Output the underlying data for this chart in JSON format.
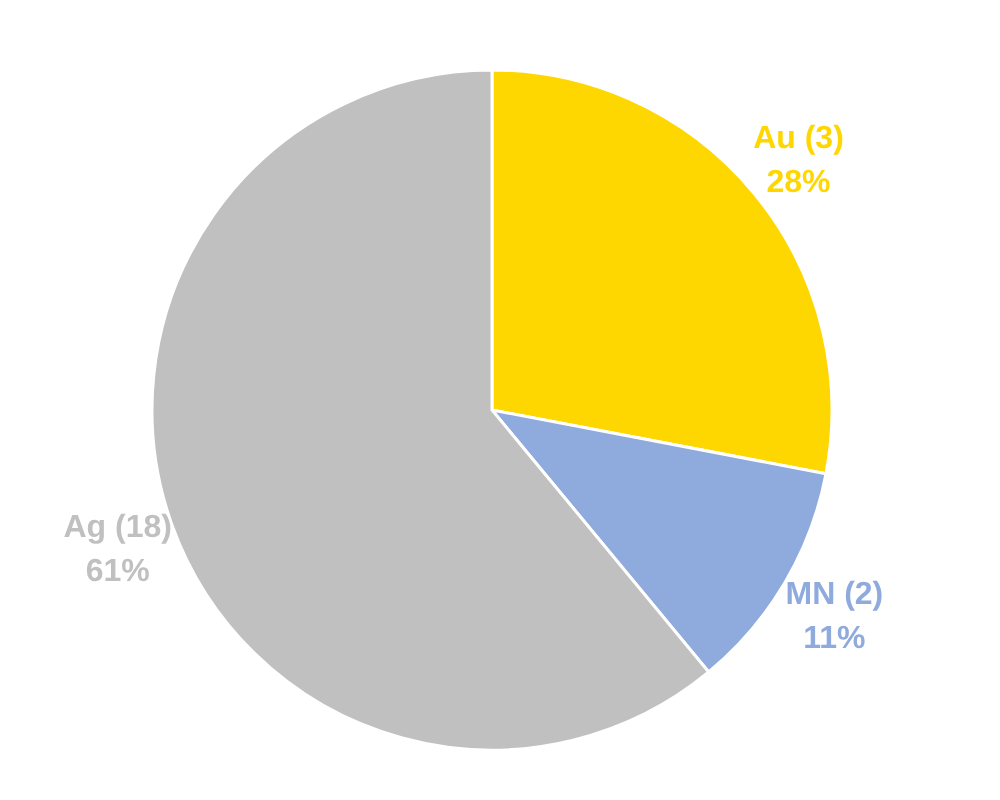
{
  "chart_data": {
    "type": "pie",
    "categories": [
      "Au (3)",
      "MN (2)",
      "Ag (18)"
    ],
    "values": [
      28,
      11,
      61
    ],
    "colors": [
      "#ffd700",
      "#8faadc",
      "#c0c0c0"
    ],
    "value_labels": [
      "28%",
      "11%",
      "61%"
    ]
  }
}
